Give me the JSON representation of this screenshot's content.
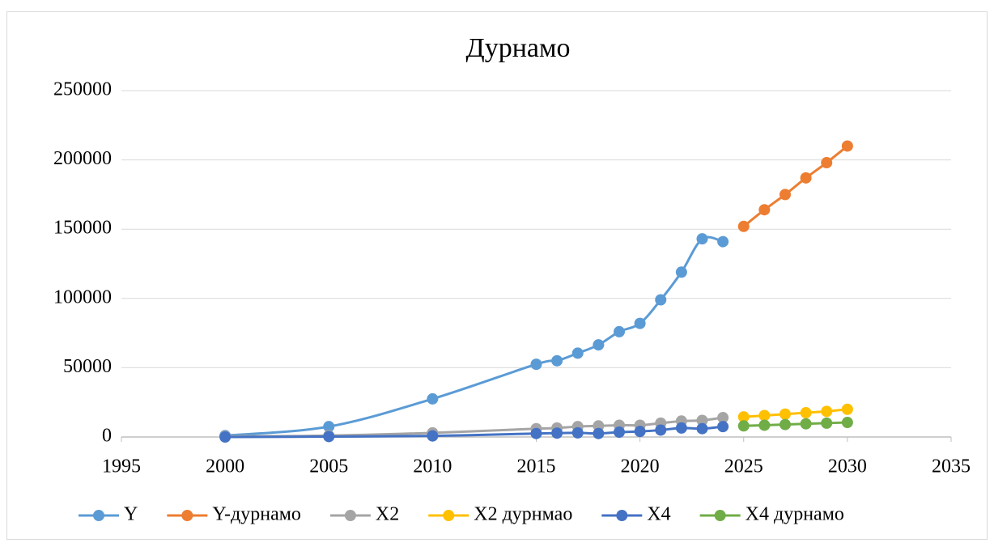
{
  "chart_data": {
    "type": "line",
    "title": "Дурнамо",
    "xlim": [
      1995,
      2035
    ],
    "xticks": [
      1995,
      2000,
      2005,
      2010,
      2015,
      2020,
      2025,
      2030,
      2035
    ],
    "ylim": [
      0,
      250000
    ],
    "yticks": [
      0,
      50000,
      100000,
      150000,
      200000,
      250000
    ],
    "grid": true,
    "legend": "bottom",
    "series": [
      {
        "name": "Y",
        "color": "#5b9bd5",
        "x": [
          2000,
          2005,
          2010,
          2015,
          2016,
          2017,
          2018,
          2019,
          2020,
          2021,
          2022,
          2023,
          2024
        ],
        "values": [
          1000,
          7500,
          27500,
          52500,
          55000,
          60500,
          66500,
          76000,
          82000,
          99000,
          119000,
          143000,
          141000
        ]
      },
      {
        "name": "Y-дурнамо",
        "color": "#ed7d31",
        "x": [
          2025,
          2026,
          2027,
          2028,
          2029,
          2030
        ],
        "values": [
          152000,
          164000,
          175000,
          187000,
          198000,
          210000
        ]
      },
      {
        "name": "X2",
        "color": "#a5a5a5",
        "x": [
          2000,
          2005,
          2010,
          2015,
          2016,
          2017,
          2018,
          2019,
          2020,
          2021,
          2022,
          2023,
          2024
        ],
        "values": [
          500,
          1000,
          3000,
          6000,
          6500,
          7500,
          8000,
          8500,
          8500,
          10000,
          11500,
          12000,
          14000
        ]
      },
      {
        "name": "X2 дурнмао",
        "color": "#ffc000",
        "x": [
          2025,
          2026,
          2027,
          2028,
          2029,
          2030
        ],
        "values": [
          14500,
          15500,
          16500,
          17500,
          18500,
          20000
        ]
      },
      {
        "name": "X4",
        "color": "#4472c4",
        "x": [
          2000,
          2005,
          2010,
          2015,
          2016,
          2017,
          2018,
          2019,
          2020,
          2021,
          2022,
          2023,
          2024
        ],
        "values": [
          0,
          300,
          800,
          2500,
          2800,
          3000,
          2500,
          3500,
          4000,
          5000,
          6500,
          6000,
          7500
        ]
      },
      {
        "name": "X4 дурнамо",
        "color": "#70ad47",
        "x": [
          2025,
          2026,
          2027,
          2028,
          2029,
          2030
        ],
        "values": [
          8000,
          8500,
          9000,
          9500,
          10000,
          10500
        ]
      }
    ]
  }
}
